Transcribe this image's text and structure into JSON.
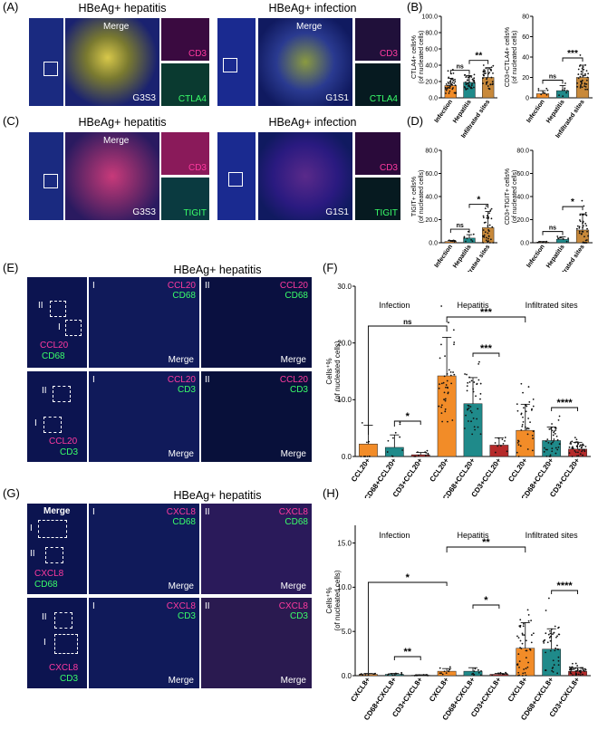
{
  "panels": {
    "A": {
      "label": "(A)",
      "title_left": "HBeAg+ hepatitis",
      "title_right": "HBeAg+ infection",
      "merge": "Merge",
      "sample_left": "G3S3",
      "sample_right": "G1S1",
      "marker1": "CD3",
      "marker2": "CTLA4"
    },
    "B": {
      "label": "(B)"
    },
    "C": {
      "label": "(C)",
      "title_left": "HBeAg+ hepatitis",
      "title_right": "HBeAg+ infection",
      "merge": "Merge",
      "sample_left": "G3S3",
      "sample_right": "G1S1",
      "marker1": "CD3",
      "marker2": "TIGIT"
    },
    "D": {
      "label": "(D)"
    },
    "E": {
      "label": "(E)",
      "title": "HBeAg+ hepatitis",
      "roman1": "I",
      "roman2": "II",
      "merge": "Merge",
      "row1_m1": "CCL20",
      "row1_m2": "CD68",
      "row2_m1": "CCL20",
      "row2_m2": "CD3"
    },
    "F": {
      "label": "(F)"
    },
    "G": {
      "label": "(G)",
      "title": "HBeAg+ hepatitis",
      "roman1": "I",
      "roman2": "II",
      "merge": "Merge",
      "row1_m1": "CXCL8",
      "row1_m2": "CD68",
      "row2_m1": "CXCL8",
      "row2_m2": "CD3"
    },
    "H": {
      "label": "(H)"
    }
  },
  "chart_data": [
    {
      "id": "B1",
      "type": "bar",
      "categories": [
        "Infection",
        "Hepatitis",
        "Infiltrated sites"
      ],
      "values": [
        15,
        19,
        25
      ],
      "errors": [
        9,
        8,
        12
      ],
      "colors": [
        "#f28c28",
        "#1f8a8a",
        "#c8893a"
      ],
      "ylabel": "CTLA4+ cells%\n(of nucleated cells)",
      "ylim": [
        0,
        100
      ],
      "yticks": [
        0,
        20,
        40,
        60,
        80,
        100
      ],
      "tick_labels": [
        "0.0",
        "20.0",
        "40.0",
        "60.0",
        "80.0",
        "100.0"
      ],
      "sig": [
        {
          "a": 0,
          "b": 1,
          "text": "ns"
        },
        {
          "a": 1,
          "b": 2,
          "text": "**"
        }
      ]
    },
    {
      "id": "B2",
      "type": "bar",
      "categories": [
        "Infection",
        "Hepatitis",
        "Infiltrated sites"
      ],
      "values": [
        4,
        7,
        20
      ],
      "errors": [
        3,
        5,
        12
      ],
      "colors": [
        "#f28c28",
        "#1f8a8a",
        "#c8893a"
      ],
      "ylabel": "CD3+CTLA4+ cells%\n(of nucleated cells)",
      "ylim": [
        0,
        80
      ],
      "yticks": [
        0,
        20,
        40,
        60,
        80
      ],
      "tick_labels": [
        "0",
        "20",
        "40",
        "60",
        "80"
      ],
      "sig": [
        {
          "a": 0,
          "b": 1,
          "text": "ns"
        },
        {
          "a": 1,
          "b": 2,
          "text": "***"
        }
      ]
    },
    {
      "id": "D1",
      "type": "bar",
      "categories": [
        "Infection",
        "Hepatitis",
        "Infiltrated sites"
      ],
      "values": [
        1,
        4,
        13
      ],
      "errors": [
        1,
        3,
        14
      ],
      "colors": [
        "#f28c28",
        "#1f8a8a",
        "#c8893a"
      ],
      "ylabel": "TIGIT+ cells%\n(of nucleated cells)",
      "ylim": [
        0,
        80
      ],
      "yticks": [
        0,
        20,
        40,
        60,
        80
      ],
      "tick_labels": [
        "0.0",
        "20.0",
        "40.0",
        "60.0",
        "80.0"
      ],
      "sig": [
        {
          "a": 0,
          "b": 1,
          "text": "ns"
        },
        {
          "a": 1,
          "b": 2,
          "text": "*"
        }
      ]
    },
    {
      "id": "D2",
      "type": "bar",
      "categories": [
        "Infection",
        "Hepatitis",
        "Infiltrated sites"
      ],
      "values": [
        0.5,
        3,
        11
      ],
      "errors": [
        0.5,
        2,
        14
      ],
      "colors": [
        "#f28c28",
        "#1f8a8a",
        "#c8893a"
      ],
      "ylabel": "CD3+TIGIT+ cells%\n(of nucleated cells)",
      "ylim": [
        0,
        80
      ],
      "yticks": [
        0,
        20,
        40,
        60,
        80
      ],
      "tick_labels": [
        "0.0",
        "20.0",
        "40.0",
        "60.0",
        "80.0"
      ],
      "sig": [
        {
          "a": 0,
          "b": 1,
          "text": "ns"
        },
        {
          "a": 1,
          "b": 2,
          "text": "*"
        }
      ]
    },
    {
      "id": "F",
      "type": "bar",
      "groups": [
        "Infection",
        "Hepatitis",
        "Infiltrated sites"
      ],
      "categories": [
        "CCL20+",
        "CD68+CCL20+",
        "CD3+CCL20+",
        "CCL20+",
        "CD68+CCL20+",
        "CD3+CCL20+",
        "CCL20+",
        "CD68+CCL20+",
        "CD3+CCL20+"
      ],
      "values": [
        2.2,
        1.6,
        0.3,
        14.2,
        9.3,
        2.0,
        4.6,
        2.8,
        1.3
      ],
      "errors": [
        3.3,
        2.2,
        0.4,
        6.8,
        4.6,
        1.3,
        4.6,
        2.4,
        1.2
      ],
      "colors": [
        "#f28c28",
        "#1f8a8a",
        "#b52a2a",
        "#f28c28",
        "#1f8a8a",
        "#b52a2a",
        "#f28c28",
        "#1f8a8a",
        "#b52a2a"
      ],
      "ylabel": "Cells⁺%\n(of nucleated cells)",
      "ylim": [
        0,
        30
      ],
      "yticks": [
        0,
        10,
        20,
        30
      ],
      "tick_labels": [
        "0.0",
        "10.0",
        "20.0",
        "30.0"
      ],
      "sig": [
        {
          "a": 1,
          "b": 2,
          "text": "*"
        },
        {
          "a": 4,
          "b": 5,
          "text": "***"
        },
        {
          "a": 7,
          "b": 8,
          "text": "****"
        },
        {
          "a": 0,
          "b": 3,
          "text": "ns"
        },
        {
          "a": 3,
          "b": 6,
          "text": "***"
        }
      ]
    },
    {
      "id": "H",
      "type": "bar",
      "groups": [
        "Infection",
        "Hepatitis",
        "Infiltrated sites"
      ],
      "categories": [
        "CXCL8+",
        "CD68+CXCL8+",
        "CD3+CXCL8+",
        "CXCL8+",
        "CD68+CXCL8+",
        "CD3+CXCL8+",
        "CXCL8+",
        "CD68+CXCL8+",
        "CD3+CXCL8+"
      ],
      "values": [
        0.15,
        0.15,
        0.05,
        0.5,
        0.5,
        0.15,
        3.1,
        3.0,
        0.5
      ],
      "errors": [
        0.1,
        0.1,
        0.05,
        0.3,
        0.4,
        0.1,
        2.9,
        2.3,
        0.4
      ],
      "colors": [
        "#f28c28",
        "#1f8a8a",
        "#b52a2a",
        "#f28c28",
        "#1f8a8a",
        "#b52a2a",
        "#f28c28",
        "#1f8a8a",
        "#b52a2a"
      ],
      "ylabel": "Cells⁺%\n(of nucleated cells)",
      "ylim": [
        0,
        17
      ],
      "yticks": [
        0,
        5,
        10,
        15
      ],
      "tick_labels": [
        "0.0",
        "5.0",
        "10.0",
        "15.0"
      ],
      "sig": [
        {
          "a": 1,
          "b": 2,
          "text": "**"
        },
        {
          "a": 4,
          "b": 5,
          "text": "*"
        },
        {
          "a": 7,
          "b": 8,
          "text": "****"
        },
        {
          "a": 0,
          "b": 3,
          "text": "*"
        },
        {
          "a": 3,
          "b": 6,
          "text": "**"
        }
      ]
    }
  ]
}
